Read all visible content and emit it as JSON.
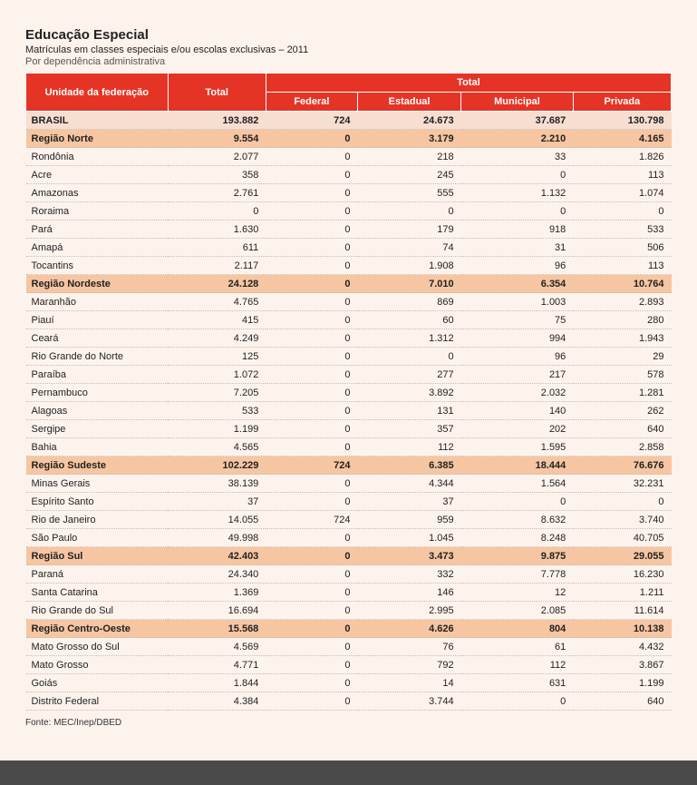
{
  "title": "Educação Especial",
  "subtitle": "Matrículas em classes especiais e/ou escolas exclusivas – 2011",
  "subtitle2": "Por dependência administrativa",
  "header": {
    "col1": "Unidade da federação",
    "col2": "Total",
    "group": "Total",
    "sub": [
      "Federal",
      "Estadual",
      "Municipal",
      "Privada"
    ]
  },
  "rows": [
    {
      "kind": "brasil",
      "label": "BRASIL",
      "total": "193.882",
      "federal": "724",
      "estadual": "24.673",
      "municipal": "37.687",
      "privada": "130.798"
    },
    {
      "kind": "region",
      "label": "Região Norte",
      "total": "9.554",
      "federal": "0",
      "estadual": "3.179",
      "municipal": "2.210",
      "privada": "4.165"
    },
    {
      "kind": "normal",
      "label": "Rondônia",
      "total": "2.077",
      "federal": "0",
      "estadual": "218",
      "municipal": "33",
      "privada": "1.826"
    },
    {
      "kind": "normal",
      "label": "Acre",
      "total": "358",
      "federal": "0",
      "estadual": "245",
      "municipal": "0",
      "privada": "113"
    },
    {
      "kind": "normal",
      "label": "Amazonas",
      "total": "2.761",
      "federal": "0",
      "estadual": "555",
      "municipal": "1.132",
      "privada": "1.074"
    },
    {
      "kind": "normal",
      "label": "Roraima",
      "total": "0",
      "federal": "0",
      "estadual": "0",
      "municipal": "0",
      "privada": "0"
    },
    {
      "kind": "normal",
      "label": "Pará",
      "total": "1.630",
      "federal": "0",
      "estadual": "179",
      "municipal": "918",
      "privada": "533"
    },
    {
      "kind": "normal",
      "label": "Amapá",
      "total": "611",
      "federal": "0",
      "estadual": "74",
      "municipal": "31",
      "privada": "506"
    },
    {
      "kind": "normal",
      "label": "Tocantins",
      "total": "2.117",
      "federal": "0",
      "estadual": "1.908",
      "municipal": "96",
      "privada": "113"
    },
    {
      "kind": "region",
      "label": "Região Nordeste",
      "total": "24.128",
      "federal": "0",
      "estadual": "7.010",
      "municipal": "6.354",
      "privada": "10.764"
    },
    {
      "kind": "normal",
      "label": "Maranhão",
      "total": "4.765",
      "federal": "0",
      "estadual": "869",
      "municipal": "1.003",
      "privada": "2.893"
    },
    {
      "kind": "normal",
      "label": "Piauí",
      "total": "415",
      "federal": "0",
      "estadual": "60",
      "municipal": "75",
      "privada": "280"
    },
    {
      "kind": "normal",
      "label": "Ceará",
      "total": "4.249",
      "federal": "0",
      "estadual": "1.312",
      "municipal": "994",
      "privada": "1.943"
    },
    {
      "kind": "normal",
      "label": "Rio Grande do Norte",
      "total": "125",
      "federal": "0",
      "estadual": "0",
      "municipal": "96",
      "privada": "29"
    },
    {
      "kind": "normal",
      "label": "Paraíba",
      "total": "1.072",
      "federal": "0",
      "estadual": "277",
      "municipal": "217",
      "privada": "578"
    },
    {
      "kind": "normal",
      "label": "Pernambuco",
      "total": "7.205",
      "federal": "0",
      "estadual": "3.892",
      "municipal": "2.032",
      "privada": "1.281"
    },
    {
      "kind": "normal",
      "label": "Alagoas",
      "total": "533",
      "federal": "0",
      "estadual": "131",
      "municipal": "140",
      "privada": "262"
    },
    {
      "kind": "normal",
      "label": "Sergipe",
      "total": "1.199",
      "federal": "0",
      "estadual": "357",
      "municipal": "202",
      "privada": "640"
    },
    {
      "kind": "normal",
      "label": "Bahia",
      "total": "4.565",
      "federal": "0",
      "estadual": "112",
      "municipal": "1.595",
      "privada": "2.858"
    },
    {
      "kind": "region",
      "label": "Região Sudeste",
      "total": "102.229",
      "federal": "724",
      "estadual": "6.385",
      "municipal": "18.444",
      "privada": "76.676"
    },
    {
      "kind": "normal",
      "label": "Minas Gerais",
      "total": "38.139",
      "federal": "0",
      "estadual": "4.344",
      "municipal": "1.564",
      "privada": "32.231"
    },
    {
      "kind": "normal",
      "label": "Espírito Santo",
      "total": "37",
      "federal": "0",
      "estadual": "37",
      "municipal": "0",
      "privada": "0"
    },
    {
      "kind": "normal",
      "label": "Rio de Janeiro",
      "total": "14.055",
      "federal": "724",
      "estadual": "959",
      "municipal": "8.632",
      "privada": "3.740"
    },
    {
      "kind": "normal",
      "label": "São Paulo",
      "total": "49.998",
      "federal": "0",
      "estadual": "1.045",
      "municipal": "8.248",
      "privada": "40.705"
    },
    {
      "kind": "region",
      "label": "Região Sul",
      "total": "42.403",
      "federal": "0",
      "estadual": "3.473",
      "municipal": "9.875",
      "privada": "29.055"
    },
    {
      "kind": "normal",
      "label": "Paraná",
      "total": "24.340",
      "federal": "0",
      "estadual": "332",
      "municipal": "7.778",
      "privada": "16.230"
    },
    {
      "kind": "normal",
      "label": "Santa Catarina",
      "total": "1.369",
      "federal": "0",
      "estadual": "146",
      "municipal": "12",
      "privada": "1.211"
    },
    {
      "kind": "normal",
      "label": "Rio Grande do Sul",
      "total": "16.694",
      "federal": "0",
      "estadual": "2.995",
      "municipal": "2.085",
      "privada": "11.614"
    },
    {
      "kind": "region",
      "label": "Região Centro-Oeste",
      "total": "15.568",
      "federal": "0",
      "estadual": "4.626",
      "municipal": "804",
      "privada": "10.138"
    },
    {
      "kind": "normal",
      "label": "Mato Grosso do Sul",
      "total": "4.569",
      "federal": "0",
      "estadual": "76",
      "municipal": "61",
      "privada": "4.432"
    },
    {
      "kind": "normal",
      "label": "Mato Grosso",
      "total": "4.771",
      "federal": "0",
      "estadual": "792",
      "municipal": "112",
      "privada": "3.867"
    },
    {
      "kind": "normal",
      "label": "Goiás",
      "total": "1.844",
      "federal": "0",
      "estadual": "14",
      "municipal": "631",
      "privada": "1.199"
    },
    {
      "kind": "normal",
      "label": "Distrito Federal",
      "total": "4.384",
      "federal": "0",
      "estadual": "3.744",
      "municipal": "0",
      "privada": "640"
    }
  ],
  "source": "Fonte: MEC/Inep/DBED",
  "colors": {
    "page_bg": "#fdf3ed",
    "header_bg": "#e53425",
    "header_fg": "#ffffff",
    "brasil_bg": "#f6ded1",
    "region_bg": "#f6c6a2",
    "border_dotted": "#c9bcb2",
    "outer_bg": "#4a4a4a"
  },
  "typography": {
    "title_fontsize": 15,
    "body_fontsize": 11,
    "source_fontsize": 10,
    "font_family": "Arial"
  }
}
